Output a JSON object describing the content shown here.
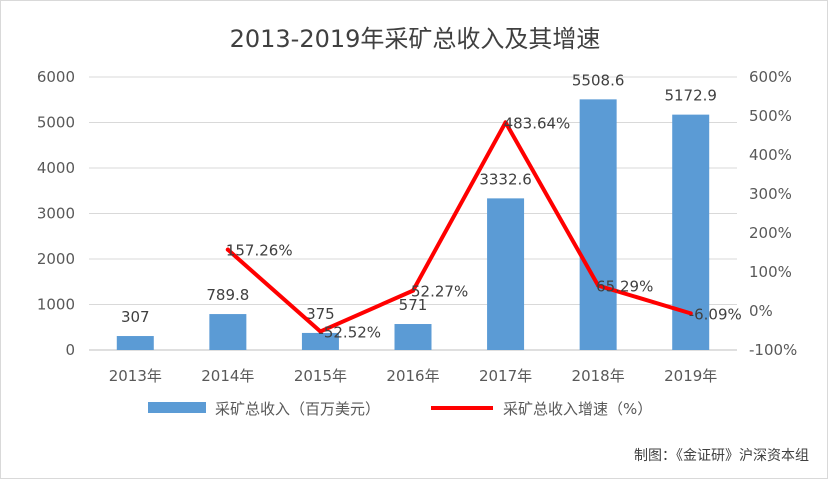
{
  "chart_data": {
    "type": "bar",
    "title": "2013-2019年采矿总收入及其增速",
    "categories": [
      "2013年",
      "2014年",
      "2015年",
      "2016年",
      "2017年",
      "2018年",
      "2019年"
    ],
    "series": [
      {
        "name": "采矿总收入（百万美元）",
        "type": "bar",
        "axis": "left",
        "color": "#5b9bd5",
        "values": [
          307,
          789.8,
          375,
          571,
          3332.6,
          5508.6,
          5172.9
        ],
        "labels": [
          "307",
          "789.8",
          "375",
          "571",
          "3332.6",
          "5508.6",
          "5172.9"
        ]
      },
      {
        "name": "采矿总收入增速（%）",
        "type": "line",
        "axis": "right",
        "color": "#ff0000",
        "values": [
          null,
          157.26,
          -52.52,
          52.27,
          483.64,
          65.29,
          -6.09
        ],
        "labels": [
          "",
          "157.26%",
          "-52.52%",
          "52.27%",
          "483.64%",
          "65.29%",
          "-6.09%"
        ]
      }
    ],
    "y_left": {
      "range": [
        0,
        6000
      ],
      "ticks": [
        0,
        1000,
        2000,
        3000,
        4000,
        5000,
        6000
      ],
      "tick_labels": [
        "0",
        "1000",
        "2000",
        "3000",
        "4000",
        "5000",
        "6000"
      ]
    },
    "y_right": {
      "range": [
        -100,
        600
      ],
      "ticks": [
        -100,
        0,
        100,
        200,
        300,
        400,
        500,
        600
      ],
      "tick_labels": [
        "-100%",
        "0%",
        "100%",
        "200%",
        "300%",
        "400%",
        "500%",
        "600%"
      ]
    },
    "grid": true,
    "legend": "bottom"
  },
  "credit": "制图：《金证研》沪深资本组"
}
